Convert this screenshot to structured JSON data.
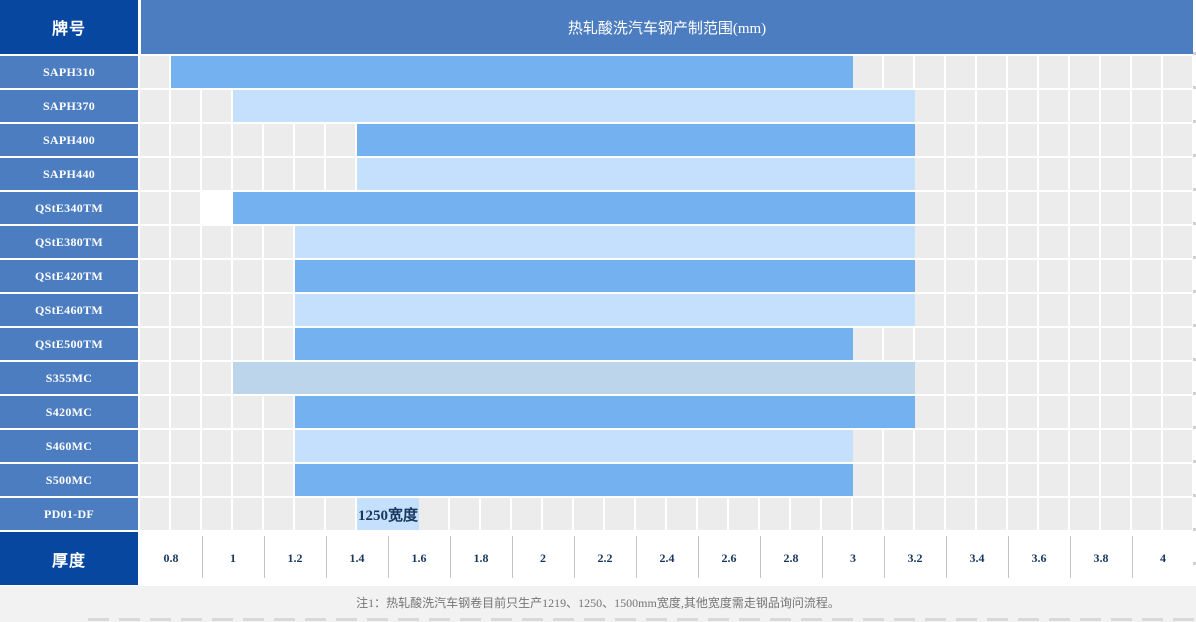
{
  "header": {
    "grade_col": "牌号",
    "title": "热轧酸洗汽车钢产制范围(mm)"
  },
  "axis": {
    "label": "厚度",
    "ticks": [
      "0.8",
      "1",
      "1.2",
      "1.4",
      "1.6",
      "1.8",
      "2",
      "2.2",
      "2.4",
      "2.6",
      "2.8",
      "3",
      "3.2",
      "3.4",
      "3.6",
      "3.8",
      "4"
    ]
  },
  "chart_data": {
    "type": "bar",
    "subtype": "horizontal-range-gantt",
    "title": "热轧酸洗汽车钢产制范围(mm)",
    "xlabel": "厚度",
    "unit": "mm",
    "xlim": [
      0.8,
      4
    ],
    "x_ticks": [
      0.8,
      1,
      1.2,
      1.4,
      1.6,
      1.8,
      2,
      2.2,
      2.4,
      2.6,
      2.8,
      3,
      3.2,
      3.4,
      3.6,
      3.8,
      4
    ],
    "grid": true,
    "rows": [
      {
        "grade": "SAPH310",
        "min_mm": 0.8,
        "max_mm": 3,
        "shade": "medium"
      },
      {
        "grade": "SAPH370",
        "min_mm": 1,
        "max_mm": 3.2,
        "shade": "light"
      },
      {
        "grade": "SAPH400",
        "min_mm": 1.4,
        "max_mm": 3.2,
        "shade": "medium"
      },
      {
        "grade": "SAPH440",
        "min_mm": 1.4,
        "max_mm": 3.2,
        "shade": "light"
      },
      {
        "grade": "QStE340TM",
        "min_mm": 1,
        "max_mm": 3.2,
        "shade": "medium",
        "white_half_cells": [
          2
        ]
      },
      {
        "grade": "QStE380TM",
        "min_mm": 1.2,
        "max_mm": 3.2,
        "shade": "light"
      },
      {
        "grade": "QStE420TM",
        "min_mm": 1.2,
        "max_mm": 3.2,
        "shade": "medium"
      },
      {
        "grade": "QStE460TM",
        "min_mm": 1.2,
        "max_mm": 3.2,
        "shade": "light"
      },
      {
        "grade": "QStE500TM",
        "min_mm": 1.2,
        "max_mm": 3,
        "shade": "medium"
      },
      {
        "grade": "S355MC",
        "min_mm": 1,
        "max_mm": 3.2,
        "shade": "muted"
      },
      {
        "grade": "S420MC",
        "min_mm": 1.2,
        "max_mm": 3.2,
        "shade": "medium"
      },
      {
        "grade": "S460MC",
        "min_mm": 1.2,
        "max_mm": 3,
        "shade": "light"
      },
      {
        "grade": "S500MC",
        "min_mm": 1.2,
        "max_mm": 3,
        "shade": "medium"
      },
      {
        "grade": "PD01-DF",
        "note_cell": {
          "from_mm": 1.4,
          "to_mm": 1.6,
          "label": "1250宽度",
          "shade": "light"
        }
      }
    ]
  },
  "footer": {
    "note": "注1：热轧酸洗汽车钢卷目前只生产1219、1250、1500mm宽度,其他宽度需走钢品询问流程。"
  },
  "colors": {
    "header_dark": "#0847A0",
    "row_label_blue": "#4C7DC0",
    "bar_medium": "#74B1F1",
    "bar_light": "#C5E0FC",
    "bar_muted": "#BCD5EA",
    "cell_gray": "#ECECEC",
    "tick_text_navy": "#17375E",
    "note_gray": "#757575",
    "footer_bg": "#F2F2F2"
  }
}
